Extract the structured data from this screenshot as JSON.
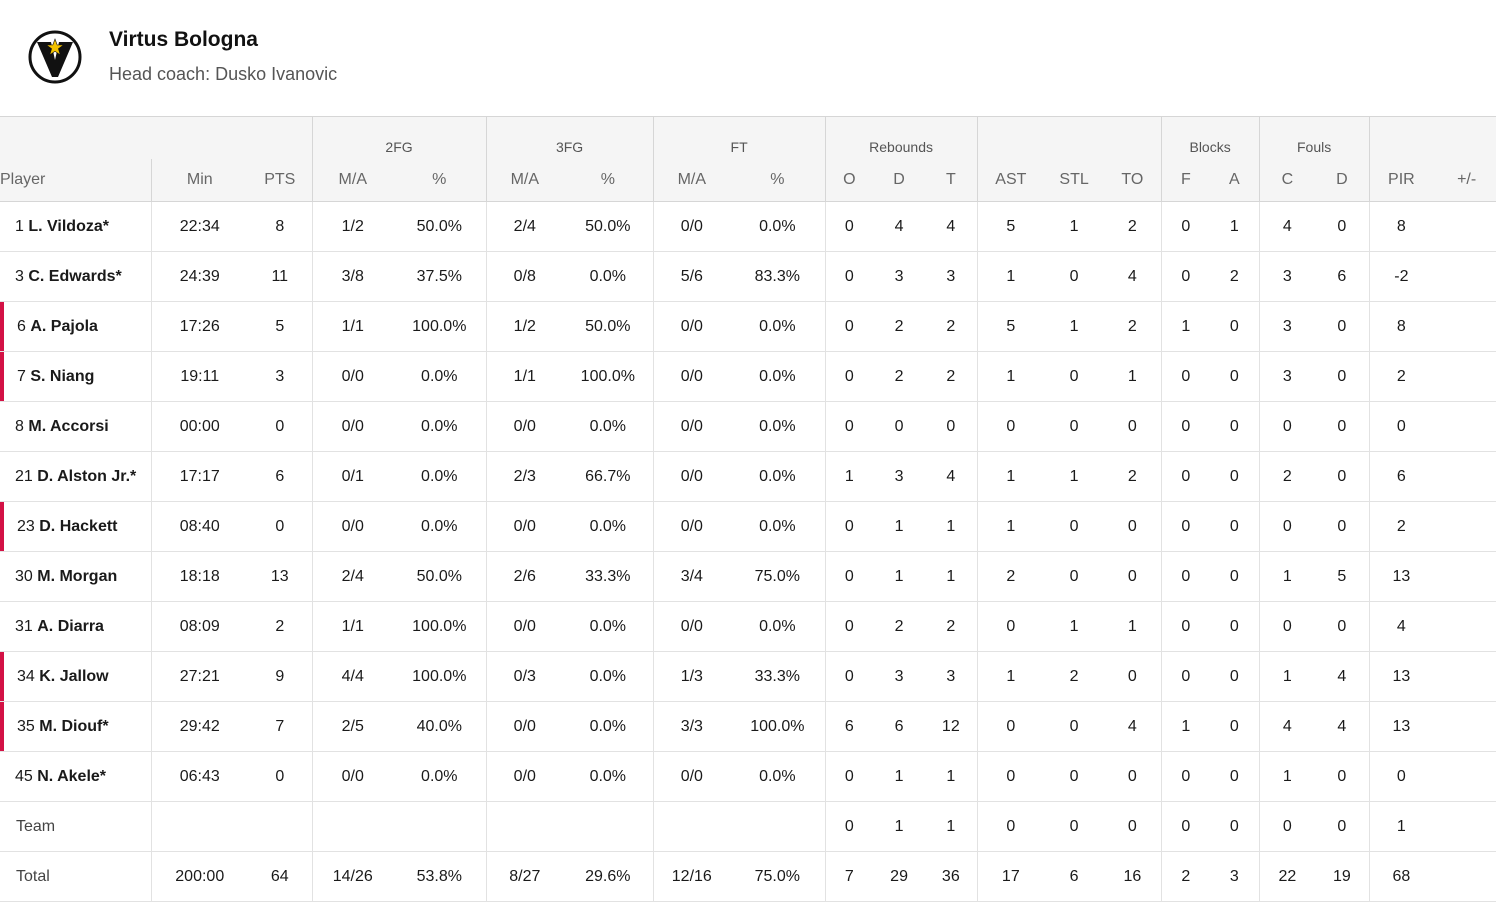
{
  "team": {
    "name": "Virtus Bologna",
    "coach": "Head coach: Dusko Ivanovic",
    "logo_icon": "virtus-v-star-logo",
    "accent_color": "#d31145"
  },
  "groups": [
    "2FG",
    "3FG",
    "FT",
    "Rebounds",
    "Blocks",
    "Fouls"
  ],
  "columns": [
    "Player",
    "Min",
    "PTS",
    "M/A",
    "%",
    "M/A",
    "%",
    "M/A",
    "%",
    "O",
    "D",
    "T",
    "AST",
    "STL",
    "TO",
    "F",
    "A",
    "C",
    "D",
    "PIR",
    "+/-"
  ],
  "players": [
    {
      "num": "1",
      "name": "L. Vildoza*",
      "highlight": false,
      "stats": [
        "22:34",
        "8",
        "1/2",
        "50.0%",
        "2/4",
        "50.0%",
        "0/0",
        "0.0%",
        "0",
        "4",
        "4",
        "5",
        "1",
        "2",
        "0",
        "1",
        "4",
        "0",
        "8",
        ""
      ]
    },
    {
      "num": "3",
      "name": "C. Edwards*",
      "highlight": false,
      "stats": [
        "24:39",
        "11",
        "3/8",
        "37.5%",
        "0/8",
        "0.0%",
        "5/6",
        "83.3%",
        "0",
        "3",
        "3",
        "1",
        "0",
        "4",
        "0",
        "2",
        "3",
        "6",
        "-2",
        ""
      ]
    },
    {
      "num": "6",
      "name": "A. Pajola",
      "highlight": true,
      "stats": [
        "17:26",
        "5",
        "1/1",
        "100.0%",
        "1/2",
        "50.0%",
        "0/0",
        "0.0%",
        "0",
        "2",
        "2",
        "5",
        "1",
        "2",
        "1",
        "0",
        "3",
        "0",
        "8",
        ""
      ]
    },
    {
      "num": "7",
      "name": "S. Niang",
      "highlight": true,
      "stats": [
        "19:11",
        "3",
        "0/0",
        "0.0%",
        "1/1",
        "100.0%",
        "0/0",
        "0.0%",
        "0",
        "2",
        "2",
        "1",
        "0",
        "1",
        "0",
        "0",
        "3",
        "0",
        "2",
        ""
      ]
    },
    {
      "num": "8",
      "name": "M. Accorsi",
      "highlight": false,
      "stats": [
        "00:00",
        "0",
        "0/0",
        "0.0%",
        "0/0",
        "0.0%",
        "0/0",
        "0.0%",
        "0",
        "0",
        "0",
        "0",
        "0",
        "0",
        "0",
        "0",
        "0",
        "0",
        "0",
        ""
      ]
    },
    {
      "num": "21",
      "name": "D. Alston Jr.*",
      "highlight": false,
      "stats": [
        "17:17",
        "6",
        "0/1",
        "0.0%",
        "2/3",
        "66.7%",
        "0/0",
        "0.0%",
        "1",
        "3",
        "4",
        "1",
        "1",
        "2",
        "0",
        "0",
        "2",
        "0",
        "6",
        ""
      ]
    },
    {
      "num": "23",
      "name": "D. Hackett",
      "highlight": true,
      "stats": [
        "08:40",
        "0",
        "0/0",
        "0.0%",
        "0/0",
        "0.0%",
        "0/0",
        "0.0%",
        "0",
        "1",
        "1",
        "1",
        "0",
        "0",
        "0",
        "0",
        "0",
        "0",
        "2",
        ""
      ]
    },
    {
      "num": "30",
      "name": "M. Morgan",
      "highlight": false,
      "stats": [
        "18:18",
        "13",
        "2/4",
        "50.0%",
        "2/6",
        "33.3%",
        "3/4",
        "75.0%",
        "0",
        "1",
        "1",
        "2",
        "0",
        "0",
        "0",
        "0",
        "1",
        "5",
        "13",
        ""
      ]
    },
    {
      "num": "31",
      "name": "A. Diarra",
      "highlight": false,
      "stats": [
        "08:09",
        "2",
        "1/1",
        "100.0%",
        "0/0",
        "0.0%",
        "0/0",
        "0.0%",
        "0",
        "2",
        "2",
        "0",
        "1",
        "1",
        "0",
        "0",
        "0",
        "0",
        "4",
        ""
      ]
    },
    {
      "num": "34",
      "name": "K. Jallow",
      "highlight": true,
      "stats": [
        "27:21",
        "9",
        "4/4",
        "100.0%",
        "0/3",
        "0.0%",
        "1/3",
        "33.3%",
        "0",
        "3",
        "3",
        "1",
        "2",
        "0",
        "0",
        "0",
        "1",
        "4",
        "13",
        ""
      ]
    },
    {
      "num": "35",
      "name": "M. Diouf*",
      "highlight": true,
      "stats": [
        "29:42",
        "7",
        "2/5",
        "40.0%",
        "0/0",
        "0.0%",
        "3/3",
        "100.0%",
        "6",
        "6",
        "12",
        "0",
        "0",
        "4",
        "1",
        "0",
        "4",
        "4",
        "13",
        ""
      ]
    },
    {
      "num": "45",
      "name": "N. Akele*",
      "highlight": false,
      "stats": [
        "06:43",
        "0",
        "0/0",
        "0.0%",
        "0/0",
        "0.0%",
        "0/0",
        "0.0%",
        "0",
        "1",
        "1",
        "0",
        "0",
        "0",
        "0",
        "0",
        "1",
        "0",
        "0",
        ""
      ]
    }
  ],
  "team_row": {
    "label": "Team",
    "stats": [
      "",
      "",
      "",
      "",
      "",
      "",
      "",
      "",
      "0",
      "1",
      "1",
      "0",
      "0",
      "0",
      "0",
      "0",
      "0",
      "0",
      "1",
      ""
    ]
  },
  "total_row": {
    "label": "Total",
    "stats": [
      "200:00",
      "64",
      "14/26",
      "53.8%",
      "8/27",
      "29.6%",
      "12/16",
      "75.0%",
      "7",
      "29",
      "36",
      "17",
      "6",
      "16",
      "2",
      "3",
      "22",
      "19",
      "68",
      ""
    ]
  }
}
